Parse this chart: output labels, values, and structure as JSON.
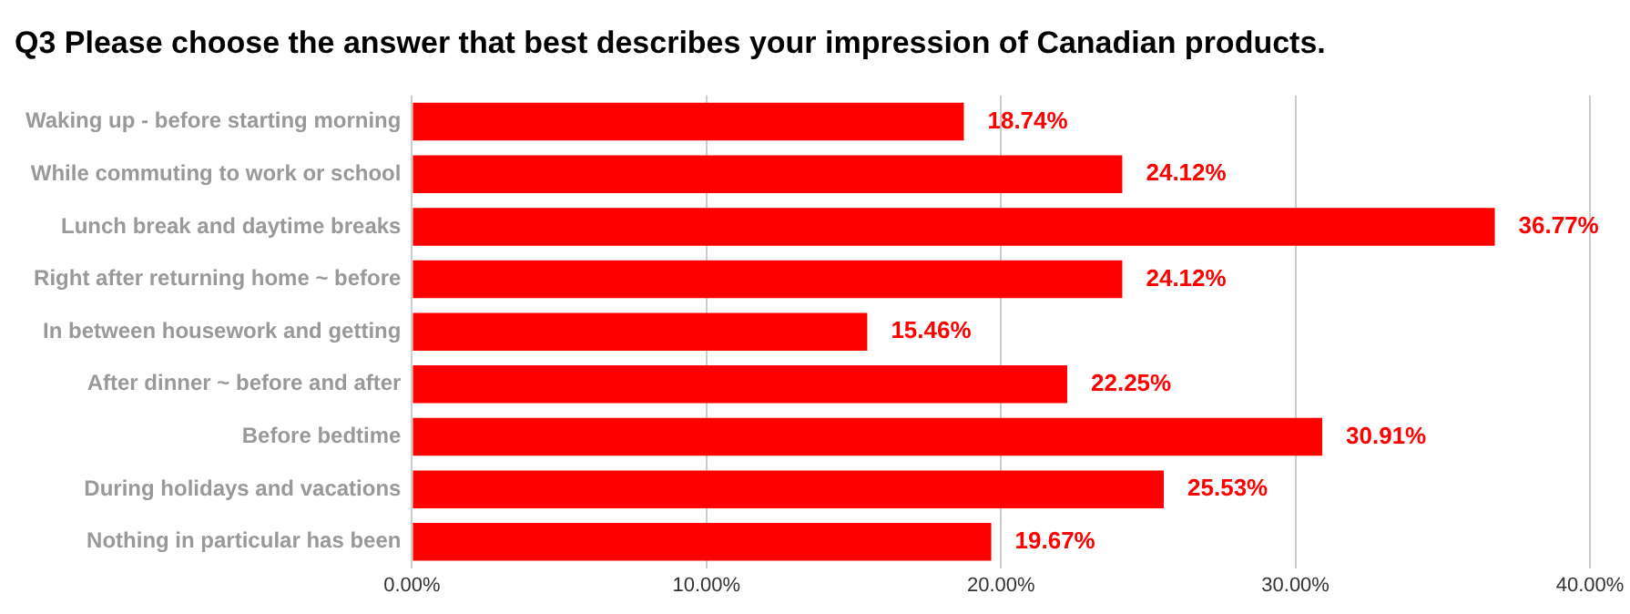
{
  "chart_data": {
    "type": "bar",
    "orientation": "horizontal",
    "title": "Q3 Please choose the answer that best describes your impression of Canadian products.",
    "categories": [
      "Waking up - before starting morning",
      "While commuting to work or school",
      "Lunch break and daytime breaks",
      "Right after returning home ~ before",
      "In between housework and getting",
      "After dinner ~ before and after",
      "Before bedtime",
      "During holidays and vacations",
      "Nothing in particular has been"
    ],
    "values": [
      18.74,
      24.12,
      36.77,
      24.12,
      15.46,
      22.25,
      30.91,
      25.53,
      19.67
    ],
    "value_labels": [
      "18.74%",
      "24.12%",
      "36.77%",
      "24.12%",
      "15.46%",
      "22.25%",
      "30.91%",
      "25.53%",
      "19.67%"
    ],
    "color": "#ff0000",
    "xlim": [
      0,
      40
    ],
    "xticks": [
      {
        "value": 0,
        "label": "0.00%"
      },
      {
        "value": 10,
        "label": "10.00%"
      },
      {
        "value": 20,
        "label": "20.00%"
      },
      {
        "value": 30,
        "label": "30.00%"
      },
      {
        "value": 40,
        "label": "40.00%"
      }
    ],
    "grid": "x"
  }
}
